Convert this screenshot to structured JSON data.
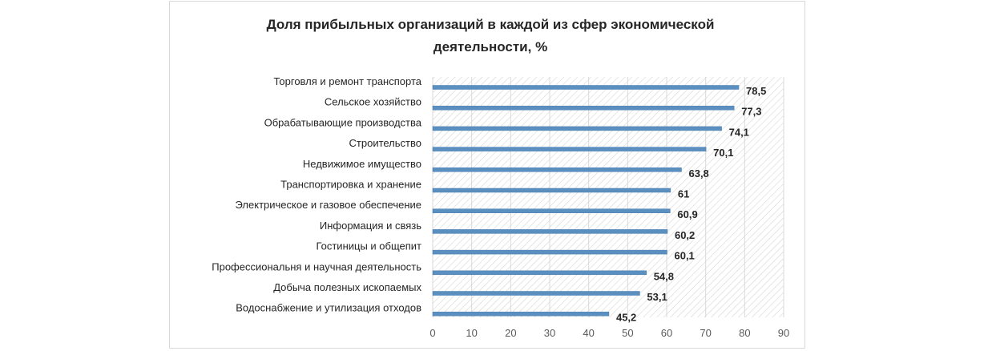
{
  "chart_data": {
    "type": "bar",
    "orientation": "horizontal",
    "title_lines": [
      "Доля прибыльных организаций в каждой из сфер экономической",
      "деятельности, %"
    ],
    "categories": [
      "Торговля и ремонт транспорта",
      "Сельское хозяйство",
      "Обрабатывающие производства",
      "Строительство",
      "Недвижимое имущество",
      "Транспортировка и хранение",
      "Электрическое и газовое обеспечение",
      "Информация и связь",
      "Гостиницы и общепит",
      "Профессиональня и научная деятельность",
      "Добыча полезных ископаемых",
      "Водоснабжение и утилизация отходов"
    ],
    "values": [
      78.5,
      77.3,
      74.1,
      70.1,
      63.8,
      61,
      60.9,
      60.2,
      60.1,
      54.8,
      53.1,
      45.2
    ],
    "value_labels": [
      "78,5",
      "77,3",
      "74,1",
      "70,1",
      "63,8",
      "61",
      "60,9",
      "60,2",
      "60,1",
      "54,8",
      "53,1",
      "45,2"
    ],
    "xlim": [
      0,
      90
    ],
    "xticks": [
      0,
      10,
      20,
      30,
      40,
      50,
      60,
      70,
      80,
      90
    ],
    "xticks_labels": [
      "0",
      "10",
      "20",
      "30",
      "40",
      "50",
      "60",
      "70",
      "80",
      "90"
    ],
    "xlabel": "",
    "ylabel": "",
    "legend": "none",
    "grid": true,
    "plot_background": "diagonal-hatch",
    "colors": {
      "bar": "#5b8fc0",
      "bar_edge": "#4a7fb2",
      "gridline": "#d9d9d9",
      "hatch": "#c8c8c8"
    }
  }
}
